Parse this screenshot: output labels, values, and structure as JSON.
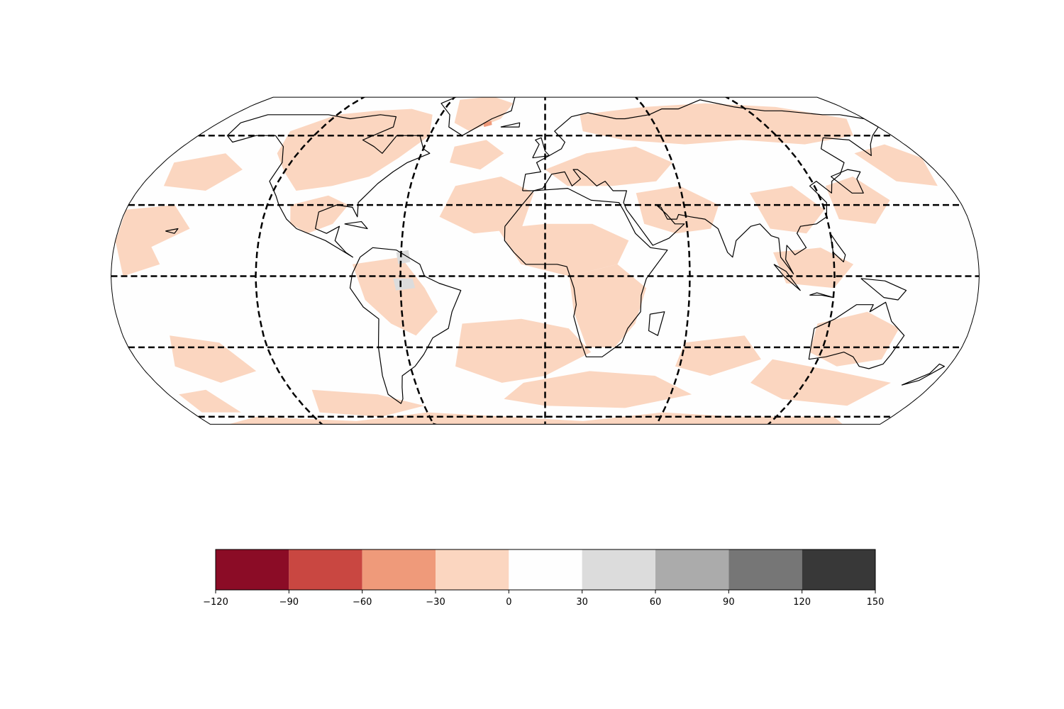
{
  "chart_data": {
    "type": "heatmap",
    "title": "",
    "projection": "Robinson",
    "central_longitude": 0,
    "coastlines": true,
    "gridlines": {
      "shown": true,
      "style": "dashed",
      "color": "#000000",
      "latitudes": [
        -60,
        -30,
        0,
        30,
        60
      ],
      "longitudes": [
        -120,
        -60,
        0,
        60,
        120
      ]
    },
    "field_levels": [
      -120,
      -90,
      -60,
      -30,
      0,
      30,
      60,
      90,
      120,
      150
    ],
    "field_extent": [
      -60,
      60
    ],
    "field_description": "Most ocean and land areas are in the 0 to 30 bin (white); widespread patches in the -30 to 0 bin (light salmon) over northern continents, Africa, Australia, South Atlantic and Southern Ocean; a small patch of 30 to 60 (light grey) over northern South America; a tiny -60 to -30 spot on the southeast coast of Greenland.",
    "colorbar": {
      "orientation": "horizontal",
      "location": "bottom",
      "bins": [
        {
          "range": [
            -120,
            -90
          ],
          "color": "#8b0c26"
        },
        {
          "range": [
            -90,
            -60
          ],
          "color": "#c94741"
        },
        {
          "range": [
            -60,
            -30
          ],
          "color": "#ef9a7a"
        },
        {
          "range": [
            -30,
            0
          ],
          "color": "#fbd6c0"
        },
        {
          "range": [
            0,
            30
          ],
          "color": "#fefefe"
        },
        {
          "range": [
            30,
            60
          ],
          "color": "#dcdcdc"
        },
        {
          "range": [
            60,
            90
          ],
          "color": "#ababab"
        },
        {
          "range": [
            90,
            120
          ],
          "color": "#767676"
        },
        {
          "range": [
            120,
            150
          ],
          "color": "#383838"
        }
      ],
      "tick_labels": [
        "−120",
        "−90",
        "−60",
        "−30",
        "0",
        "30",
        "60",
        "90",
        "120",
        "150"
      ]
    }
  }
}
